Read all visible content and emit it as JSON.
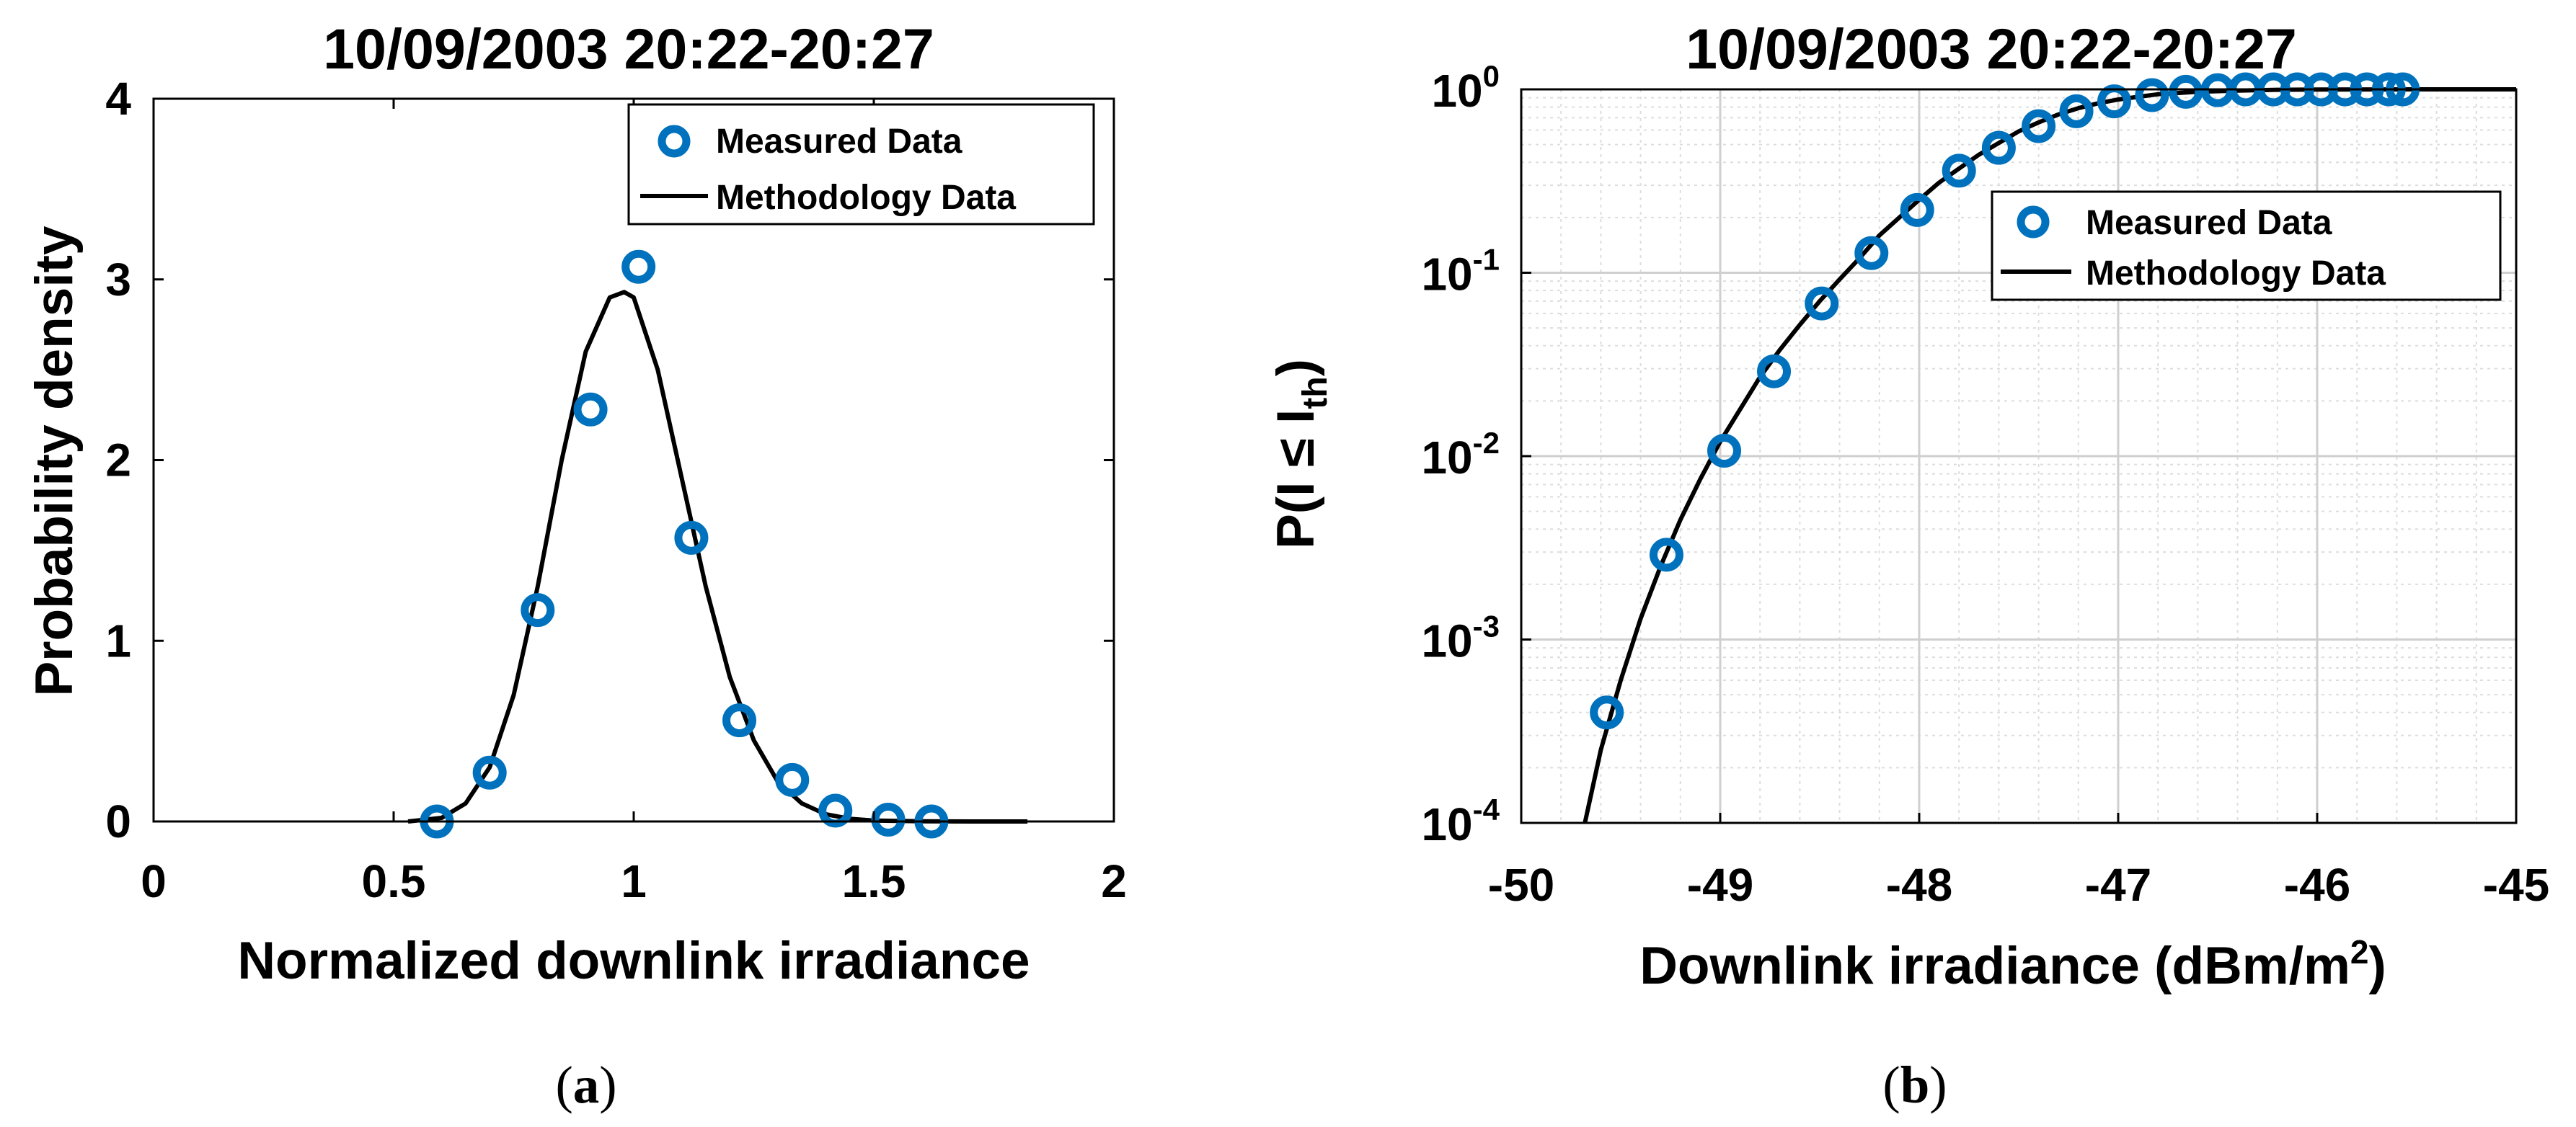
{
  "chart_data": [
    {
      "panel": "(a)",
      "panel_letter": "a",
      "type": "line",
      "title": "10/09/2003 20:22-20:27",
      "xlabel": "Normalized downlink irradiance",
      "ylabel": "Probability density",
      "xlim": [
        0,
        2
      ],
      "ylim": [
        0,
        4
      ],
      "x_ticks": [
        0,
        0.5,
        1,
        1.5,
        2
      ],
      "x_tick_labels": [
        "0",
        "0.5",
        "1",
        "1.5",
        "2"
      ],
      "y_ticks": [
        0,
        1,
        2,
        3,
        4
      ],
      "y_tick_labels": [
        "0",
        "1",
        "2",
        "3",
        "4"
      ],
      "grid": false,
      "legend": "top-right",
      "series": [
        {
          "name": "Measured Data",
          "kind": "scatter",
          "marker": "circle",
          "color": "#0072BD",
          "x": [
            0.59,
            0.7,
            0.8,
            0.91,
            1.01,
            1.12,
            1.22,
            1.33,
            1.42,
            1.53,
            1.62
          ],
          "y": [
            0.0,
            0.27,
            1.17,
            2.28,
            3.07,
            1.57,
            0.56,
            0.23,
            0.06,
            0.01,
            0.0
          ]
        },
        {
          "name": "Methodology Data",
          "kind": "line",
          "color": "#000000",
          "x": [
            0.53,
            0.6,
            0.65,
            0.7,
            0.75,
            0.8,
            0.85,
            0.9,
            0.95,
            0.98,
            1.0,
            1.05,
            1.1,
            1.15,
            1.2,
            1.25,
            1.3,
            1.35,
            1.4,
            1.45,
            1.5,
            1.6,
            1.7,
            1.82
          ],
          "y": [
            0.0,
            0.02,
            0.1,
            0.3,
            0.7,
            1.3,
            2.0,
            2.6,
            2.9,
            2.93,
            2.9,
            2.5,
            1.9,
            1.3,
            0.8,
            0.45,
            0.22,
            0.1,
            0.04,
            0.015,
            0.005,
            0.001,
            0.0,
            0.0
          ]
        }
      ]
    },
    {
      "panel": "(b)",
      "panel_letter": "b",
      "type": "line",
      "title": "10/09/2003 20:22-20:27",
      "xlabel_main": "Downlink irradiance (dBm/m",
      "xlabel_sup": "2",
      "xlabel_close": ")",
      "ylabel_main": "P(I ≤ I",
      "ylabel_sub": "th",
      "ylabel_close": ")",
      "xlim": [
        -50,
        -45
      ],
      "ylim": [
        0.0001,
        1
      ],
      "yscale": "log",
      "x_ticks": [
        -50,
        -49,
        -48,
        -47,
        -46,
        -45
      ],
      "x_tick_labels": [
        "-50",
        "-49",
        "-48",
        "-47",
        "-46",
        "-45"
      ],
      "y_ticks": [
        0.0001,
        0.001,
        0.01,
        0.1,
        1
      ],
      "y_tick_bases": [
        "10",
        "10",
        "10",
        "10",
        "10"
      ],
      "y_tick_exps": [
        "-4",
        "-3",
        "-2",
        "-1",
        "0"
      ],
      "grid": true,
      "legend": "top-right",
      "series": [
        {
          "name": "Measured Data",
          "kind": "scatter",
          "marker": "circle",
          "color": "#0072BD",
          "x": [
            -49.57,
            -49.27,
            -48.98,
            -48.73,
            -48.49,
            -48.24,
            -48.01,
            -47.8,
            -47.6,
            -47.4,
            -47.21,
            -47.02,
            -46.83,
            -46.66,
            -46.5,
            -46.36,
            -46.22,
            -46.1,
            -45.98,
            -45.86,
            -45.75,
            -45.64,
            -45.57
          ],
          "y": [
            0.0004,
            0.0029,
            0.0107,
            0.029,
            0.068,
            0.128,
            0.22,
            0.36,
            0.48,
            0.63,
            0.76,
            0.86,
            0.93,
            0.97,
            0.99,
            1.0,
            1.0,
            1.0,
            1.0,
            1.0,
            1.0,
            1.0,
            1.0
          ]
        },
        {
          "name": "Methodology Data",
          "kind": "line",
          "color": "#000000",
          "x": [
            -49.68,
            -49.6,
            -49.5,
            -49.4,
            -49.3,
            -49.2,
            -49.1,
            -49.0,
            -48.9,
            -48.8,
            -48.7,
            -48.6,
            -48.5,
            -48.4,
            -48.3,
            -48.2,
            -48.1,
            -48.0,
            -47.9,
            -47.8,
            -47.7,
            -47.6,
            -47.5,
            -47.4,
            -47.3,
            -47.2,
            -47.1,
            -47.0,
            -46.9,
            -46.8,
            -46.6,
            -46.4,
            -46.2,
            -46.0,
            -45.5,
            -45.0
          ],
          "y": [
            0.0001,
            0.00025,
            0.0006,
            0.0013,
            0.0025,
            0.0045,
            0.0075,
            0.012,
            0.018,
            0.027,
            0.038,
            0.052,
            0.07,
            0.092,
            0.12,
            0.16,
            0.2,
            0.25,
            0.31,
            0.37,
            0.44,
            0.51,
            0.59,
            0.66,
            0.73,
            0.79,
            0.84,
            0.88,
            0.91,
            0.94,
            0.97,
            0.985,
            0.995,
            0.998,
            1.0,
            1.0
          ]
        }
      ]
    }
  ]
}
